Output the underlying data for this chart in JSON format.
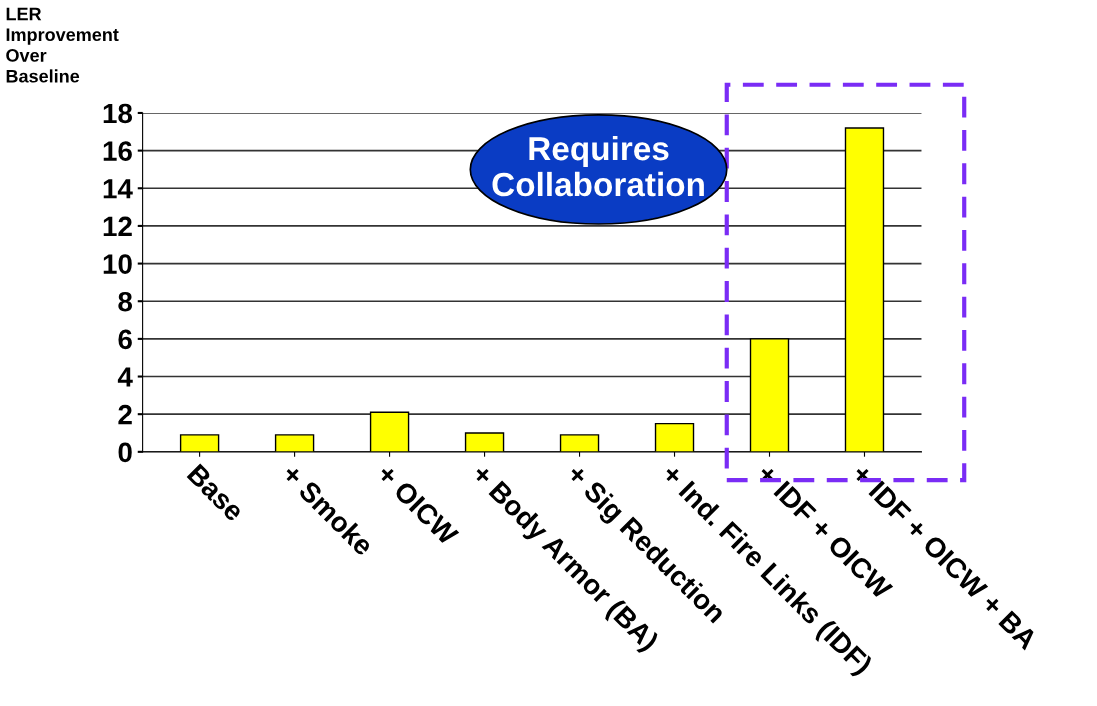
{
  "chart_data": {
    "type": "bar",
    "ylabel": "LER\nImprovement\nOver\nBaseline",
    "categories": [
      "Base",
      "+ Smoke",
      "+ OICW",
      "+ Body Armor (BA)",
      "+ Sig Reduction",
      "+ Ind. Fire Links (IDF)",
      "+ IDF + OICW",
      "+ IDF + OICW + BA"
    ],
    "values": [
      0.9,
      0.9,
      2.1,
      1.0,
      0.9,
      1.5,
      6.0,
      17.2
    ],
    "color": "#ffff00",
    "ylim": [
      0,
      18
    ],
    "yticks": [
      0,
      2,
      4,
      6,
      8,
      10,
      12,
      14,
      16,
      18
    ],
    "grid": "y",
    "annotations": [
      "Requires Collaboration"
    ]
  }
}
